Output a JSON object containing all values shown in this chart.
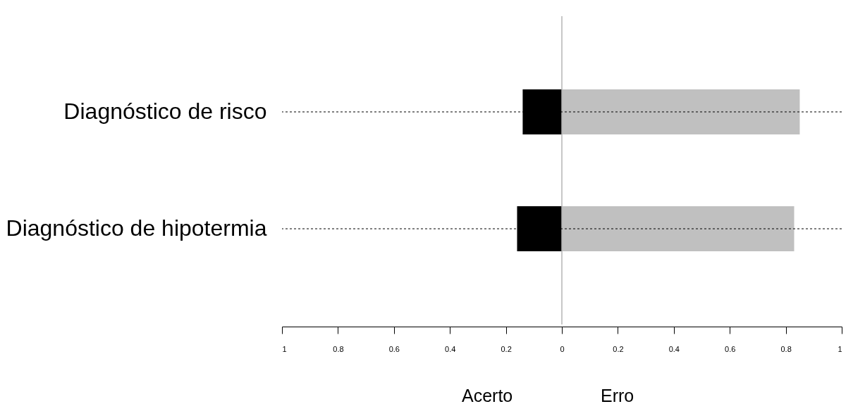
{
  "chart_data": {
    "type": "bar",
    "orientation": "horizontal",
    "stacked": true,
    "categories": [
      "Diagnóstico de risco",
      "Diagnóstico de hipotermia"
    ],
    "series": [
      {
        "color": "#000000",
        "values": [
          -0.14,
          -0.16
        ]
      },
      {
        "color": "#c0c0c0",
        "values": [
          0.85,
          0.83
        ]
      }
    ],
    "xlim": [
      -1,
      1
    ],
    "xticks": [
      {
        "value": -1,
        "label": "1"
      },
      {
        "value": -0.8,
        "label": "0.8"
      },
      {
        "value": -0.6,
        "label": "0.6"
      },
      {
        "value": -0.4,
        "label": "0.4"
      },
      {
        "value": -0.2,
        "label": "0.2"
      },
      0,
      0.2,
      0.4,
      0.6,
      0.8,
      1
    ],
    "ref_lines": [
      {
        "axis": "x",
        "value": 0,
        "color": "#b4b4b4"
      },
      {
        "axis": "y",
        "value": "Diagnóstico de risco",
        "color": "#000000",
        "line_style": "dotted"
      },
      {
        "axis": "y",
        "value": "Diagnóstico de hipotermia",
        "color": "#000000",
        "line_style": "dotted"
      }
    ],
    "annotations": [
      "Acerto",
      "Erro"
    ]
  }
}
